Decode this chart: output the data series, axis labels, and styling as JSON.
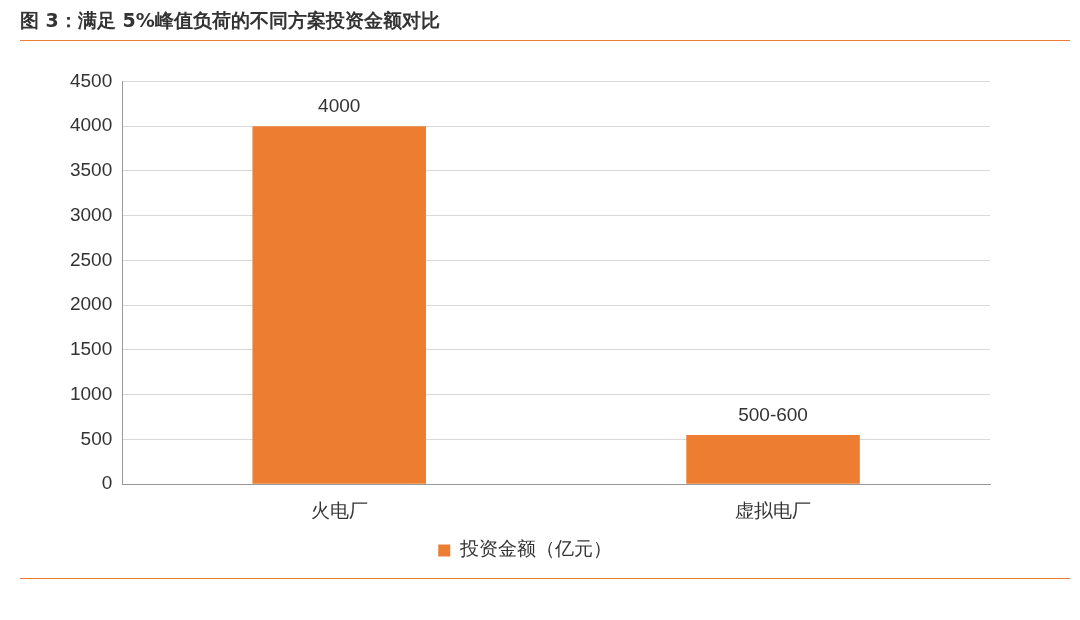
{
  "chart_data": {
    "type": "bar",
    "title": "图 3：满足 5%峰值负荷的不同方案投资金额对比",
    "categories": [
      "火电厂",
      "虚拟电厂"
    ],
    "series": [
      {
        "name": "投资金额（亿元）",
        "color": "#ed7d31",
        "values": [
          4000,
          550
        ],
        "value_labels": [
          "4000",
          "500-600"
        ]
      }
    ],
    "ylim": [
      0,
      4500
    ],
    "yticks": [
      0,
      500,
      1000,
      1500,
      2000,
      2500,
      3000,
      3500,
      4000,
      4500
    ],
    "grid": "y",
    "legend": "bottom"
  }
}
